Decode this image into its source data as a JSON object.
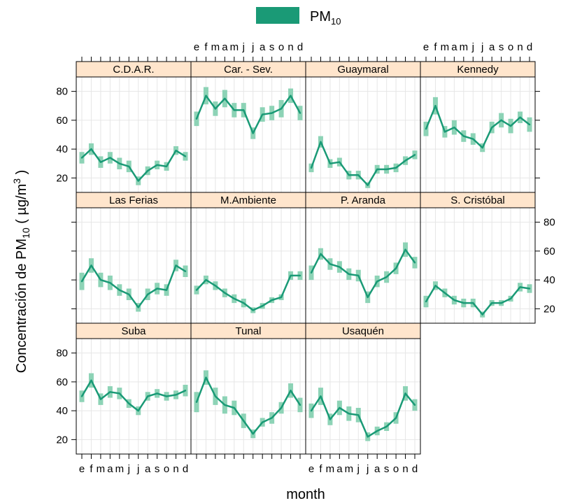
{
  "chart_data": {
    "type": "line",
    "xlabel": "month",
    "ylabel": "Concentración de PM10 ( µg/m3 )",
    "ylabel_parts": {
      "main": "Concentración de PM",
      "sub": "10",
      "mid": " ( µg/m",
      "sup": "3",
      "end": " )"
    },
    "legend": {
      "label": "PM",
      "sub": "10",
      "color": "#1a9a76",
      "placement": "top"
    },
    "month_labels": [
      "e",
      "f",
      "m",
      "a",
      "m",
      "j",
      "j",
      "a",
      "s",
      "o",
      "n",
      "d"
    ],
    "y_ticks": [
      20,
      40,
      60,
      80
    ],
    "ylim": [
      10,
      90
    ],
    "colors": {
      "line": "#1a9a76",
      "band": "#8dd3b6",
      "strip": "#ffe5cc",
      "grid": "#e6e6e6"
    },
    "panels": [
      {
        "name": "C.D.A.R.",
        "values": [
          34,
          40,
          31,
          34,
          30,
          28,
          18,
          25,
          29,
          28,
          39,
          35
        ],
        "err": [
          4,
          4,
          4,
          4,
          4,
          4,
          3,
          3,
          3,
          3,
          3,
          3
        ]
      },
      {
        "name": "Car. - Sev.",
        "values": [
          61,
          77,
          68,
          75,
          67,
          67,
          51,
          64,
          65,
          68,
          77,
          65
        ],
        "err": [
          5,
          6,
          5,
          6,
          5,
          5,
          4,
          5,
          5,
          6,
          5,
          5
        ]
      },
      {
        "name": "Guaymaral",
        "values": [
          27,
          45,
          30,
          31,
          22,
          22,
          15,
          26,
          26,
          27,
          32,
          36
        ],
        "err": [
          3,
          4,
          3,
          3,
          3,
          3,
          2,
          3,
          3,
          3,
          3,
          3
        ]
      },
      {
        "name": "Kennedy",
        "values": [
          54,
          70,
          52,
          55,
          49,
          47,
          41,
          55,
          60,
          56,
          62,
          57
        ],
        "err": [
          5,
          6,
          4,
          5,
          4,
          4,
          3,
          4,
          5,
          5,
          4,
          5
        ]
      },
      {
        "name": "Las Ferias",
        "values": [
          39,
          50,
          40,
          38,
          33,
          30,
          21,
          30,
          34,
          33,
          50,
          46
        ],
        "err": [
          6,
          5,
          5,
          5,
          4,
          4,
          3,
          4,
          4,
          4,
          4,
          4
        ]
      },
      {
        "name": "M.Ambiente",
        "values": [
          33,
          40,
          36,
          31,
          27,
          24,
          19,
          22,
          26,
          28,
          43,
          43
        ],
        "err": [
          3,
          3,
          3,
          3,
          3,
          3,
          2,
          2,
          2,
          2,
          3,
          3
        ]
      },
      {
        "name": "P. Aranda",
        "values": [
          45,
          58,
          51,
          49,
          44,
          43,
          28,
          39,
          42,
          48,
          61,
          52
        ],
        "err": [
          5,
          4,
          4,
          4,
          4,
          4,
          4,
          4,
          4,
          4,
          5,
          4
        ]
      },
      {
        "name": "S. Cristóbal",
        "values": [
          25,
          36,
          31,
          26,
          24,
          24,
          16,
          24,
          24,
          27,
          35,
          34
        ],
        "err": [
          4,
          3,
          3,
          3,
          3,
          3,
          2,
          2,
          2,
          2,
          3,
          3
        ]
      },
      {
        "name": "Suba",
        "values": [
          50,
          61,
          48,
          53,
          52,
          45,
          40,
          50,
          52,
          50,
          51,
          54
        ],
        "err": [
          4,
          5,
          4,
          4,
          4,
          3,
          3,
          3,
          3,
          3,
          3,
          4
        ]
      },
      {
        "name": "Tunal",
        "values": [
          46,
          63,
          50,
          44,
          42,
          33,
          24,
          32,
          35,
          42,
          54,
          44
        ],
        "err": [
          7,
          5,
          6,
          6,
          5,
          5,
          3,
          3,
          4,
          4,
          5,
          5
        ]
      },
      {
        "name": "Usaquén",
        "values": [
          40,
          50,
          34,
          42,
          38,
          37,
          22,
          26,
          29,
          35,
          52,
          44
        ],
        "err": [
          5,
          6,
          4,
          5,
          5,
          5,
          3,
          3,
          3,
          4,
          5,
          4
        ]
      }
    ]
  }
}
